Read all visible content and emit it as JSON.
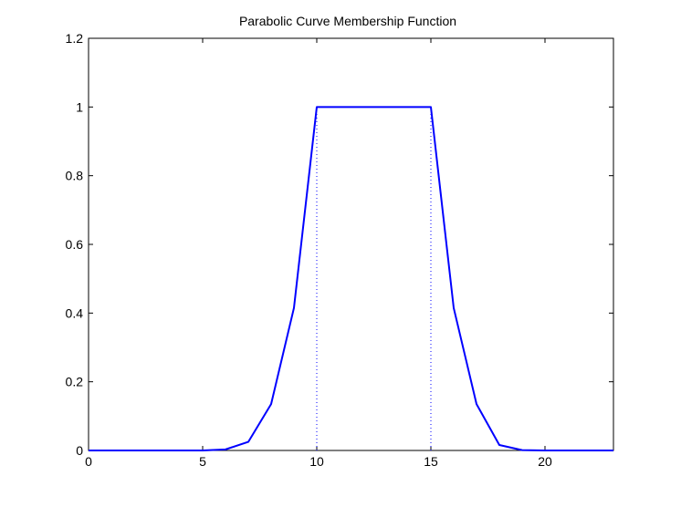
{
  "chart_data": {
    "type": "line",
    "title": "Parabolic Curve Membership Function",
    "xlabel": "",
    "ylabel": "",
    "xlim": [
      0,
      23
    ],
    "ylim": [
      0,
      1.2
    ],
    "xticks": [
      0,
      5,
      10,
      15,
      20
    ],
    "yticks": [
      0,
      0.2,
      0.4,
      0.6,
      0.8,
      1,
      1.2
    ],
    "xtick_labels": [
      "0",
      "5",
      "10",
      "15",
      "20"
    ],
    "ytick_labels": [
      "0",
      "0.2",
      "0.4",
      "0.6",
      "0.8",
      "1",
      "1.2"
    ],
    "grid": false,
    "legend": "none",
    "series": [
      {
        "color": "#0000ff",
        "style": "solid",
        "x": [
          0,
          1,
          2,
          3,
          4,
          5,
          6,
          7,
          8,
          9,
          10,
          11,
          12,
          13,
          14,
          15,
          16,
          17,
          18,
          19,
          20,
          21,
          22,
          23
        ],
        "y": [
          0,
          0,
          0,
          0,
          0,
          0,
          0.003,
          0.025,
          0.135,
          0.415,
          1,
          1,
          1,
          1,
          1,
          1,
          0.415,
          0.135,
          0.016,
          0.001,
          0,
          0,
          0,
          0
        ]
      }
    ],
    "reference_lines": [
      {
        "x": 10,
        "y0": 0,
        "y1": 1,
        "color": "#0000ff",
        "style": "dotted"
      },
      {
        "x": 15,
        "y0": 0,
        "y1": 1,
        "color": "#0000ff",
        "style": "dotted"
      }
    ]
  }
}
